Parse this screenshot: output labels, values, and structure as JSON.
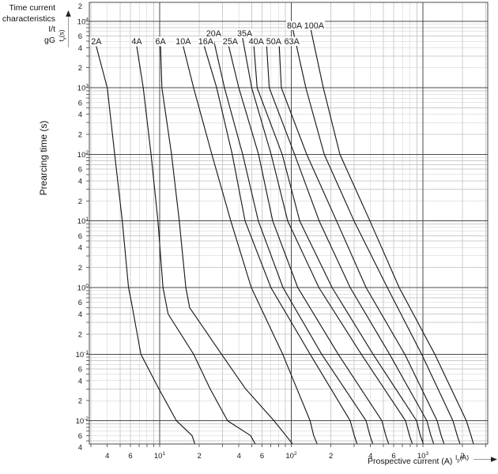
{
  "title": {
    "line1": "Time current",
    "line2": "characteristics I/t",
    "line3": "gG"
  },
  "y_axis": {
    "label": "Prearcing time (s)",
    "symbol_main": "t",
    "symbol_sub": "v",
    "symbol_unit": "(s)"
  },
  "x_axis": {
    "label": "Prospective current (A)",
    "symbol_main": "I",
    "symbol_sub": "p",
    "symbol_unit": "(A)"
  },
  "colors": {
    "background": "#ffffff",
    "grid_minor": "#cccccc",
    "grid_major": "#4a4a4a",
    "frame": "#4a4a4a",
    "curve": "#1a1a1a",
    "text": "#1a1a1a"
  },
  "chart_data": {
    "type": "line",
    "title": "Time current characteristics I/t gG",
    "xlabel": "Prospective current (A)",
    "ylabel": "Prearcing time (s)",
    "x_scale": "log",
    "y_scale": "log",
    "xlim": [
      3,
      3100
    ],
    "ylim": [
      0.004,
      20000
    ],
    "grid": "log minor+major, both axes",
    "x_tick_labels": [
      "4",
      "6",
      "10^1",
      "2",
      "4",
      "6",
      "10^2",
      "2",
      "4",
      "6",
      "10^3",
      "2"
    ],
    "y_tick_labels": [
      "2",
      "10^4",
      "6",
      "4",
      "2",
      "10^3",
      "6",
      "4",
      "2",
      "10^2",
      "6",
      "4",
      "2",
      "10^1",
      "6",
      "4",
      "2",
      "10^0",
      "6",
      "4",
      "2",
      "10^-1",
      "6",
      "4",
      "2",
      "10^-2",
      "6",
      "4"
    ],
    "series_note": "points are [prospective_current_A, prearcing_time_s] read from the curves",
    "series": [
      {
        "name": "2A",
        "label_row": 3,
        "label_dx": 0,
        "points": [
          [
            3.3,
            4200
          ],
          [
            4.0,
            1000
          ],
          [
            4.55,
            100
          ],
          [
            5.2,
            10
          ],
          [
            5.8,
            1
          ],
          [
            6.1,
            0.6
          ],
          [
            7.2,
            0.1
          ],
          [
            9.7,
            0.032
          ],
          [
            13.4,
            0.01
          ],
          [
            17.6,
            0.006
          ],
          [
            18.9,
            0.004
          ]
        ]
      },
      {
        "name": "4A",
        "label_row": 3,
        "label_dx": 0,
        "points": [
          [
            6.7,
            4200
          ],
          [
            7.5,
            1000
          ],
          [
            8.6,
            100
          ],
          [
            9.7,
            10
          ],
          [
            10.6,
            1
          ],
          [
            11.6,
            0.4
          ],
          [
            18.1,
            0.1
          ],
          [
            24.2,
            0.03
          ],
          [
            32.8,
            0.01
          ],
          [
            49,
            0.006
          ],
          [
            55,
            0.004
          ]
        ]
      },
      {
        "name": "6A",
        "label_row": 3,
        "label_dx": 0,
        "points": [
          [
            10.15,
            4200
          ],
          [
            10.4,
            1000
          ],
          [
            12.3,
            100
          ],
          [
            14.1,
            10
          ],
          [
            15.8,
            1
          ],
          [
            16.9,
            0.5
          ],
          [
            29.5,
            0.1
          ],
          [
            45,
            0.03
          ],
          [
            74,
            0.01
          ],
          [
            91,
            0.006
          ],
          [
            107,
            0.004
          ]
        ]
      },
      {
        "name": "10A",
        "label_row": 3,
        "label_dx": 0,
        "points": [
          [
            15.1,
            4200
          ],
          [
            18.1,
            1000
          ],
          [
            24.9,
            100
          ],
          [
            34.7,
            10
          ],
          [
            49.7,
            1
          ],
          [
            86,
            0.1
          ],
          [
            139,
            0.01
          ],
          [
            148,
            0.006
          ],
          [
            161,
            0.004
          ]
        ]
      },
      {
        "name": "16A",
        "label_row": 3,
        "label_dx": 2,
        "points": [
          [
            21.8,
            4200
          ],
          [
            27.1,
            1000
          ],
          [
            35.6,
            100
          ],
          [
            44.5,
            10
          ],
          [
            70,
            1
          ],
          [
            139,
            0.1
          ],
          [
            280,
            0.01
          ],
          [
            301,
            0.006
          ],
          [
            322,
            0.004
          ]
        ]
      },
      {
        "name": "20A",
        "label_row": 2,
        "label_dx": 1,
        "points": [
          [
            25.4,
            5800
          ],
          [
            31.1,
            1000
          ],
          [
            42.7,
            100
          ],
          [
            56.2,
            10
          ],
          [
            86.5,
            1
          ],
          [
            170,
            0.1
          ],
          [
            370,
            0.01
          ],
          [
            396,
            0.006
          ],
          [
            424,
            0.004
          ]
        ]
      },
      {
        "name": "25A",
        "label_row": 3,
        "label_dx": 2,
        "points": [
          [
            33.5,
            4200
          ],
          [
            39.9,
            1000
          ],
          [
            56.4,
            100
          ],
          [
            72.3,
            10
          ],
          [
            112,
            1
          ],
          [
            227,
            0.1
          ],
          [
            488,
            0.01
          ],
          [
            523,
            0.006
          ],
          [
            560,
            0.004
          ]
        ]
      },
      {
        "name": "35A",
        "label_row": 2,
        "label_dx": 3,
        "points": [
          [
            42.5,
            5800
          ],
          [
            50,
            1000
          ],
          [
            70.3,
            100
          ],
          [
            94,
            10
          ],
          [
            162,
            1
          ],
          [
            340,
            0.1
          ],
          [
            738,
            0.01
          ],
          [
            791,
            0.006
          ],
          [
            848,
            0.004
          ]
        ]
      },
      {
        "name": "40A",
        "label_row": 3,
        "label_dx": 3,
        "points": [
          [
            52,
            4200
          ],
          [
            55,
            1000
          ],
          [
            85.3,
            100
          ],
          [
            116,
            10
          ],
          [
            204,
            1
          ],
          [
            418,
            0.1
          ],
          [
            895,
            0.01
          ],
          [
            956,
            0.006
          ],
          [
            1030,
            0.004
          ]
        ]
      },
      {
        "name": "50A",
        "label_row": 3,
        "label_dx": 9,
        "points": [
          [
            65,
            4200
          ],
          [
            68,
            1000
          ],
          [
            106,
            100
          ],
          [
            163,
            10
          ],
          [
            280,
            1
          ],
          [
            558,
            0.1
          ],
          [
            1072,
            0.01
          ],
          [
            1150,
            0.006
          ],
          [
            1233,
            0.004
          ]
        ]
      },
      {
        "name": "63A",
        "label_row": 3,
        "label_dx": 16,
        "points": [
          [
            81,
            4200
          ],
          [
            84,
            1000
          ],
          [
            131,
            100
          ],
          [
            221,
            10
          ],
          [
            370,
            1
          ],
          [
            728,
            0.1
          ],
          [
            1283,
            0.01
          ],
          [
            1376,
            0.006
          ],
          [
            1477,
            0.004
          ]
        ]
      },
      {
        "name": "80A",
        "label_row": 1,
        "label_dx": 2,
        "points": [
          [
            103,
            7400
          ],
          [
            129,
            1000
          ],
          [
            178,
            100
          ],
          [
            300,
            10
          ],
          [
            537,
            1
          ],
          [
            978,
            0.1
          ],
          [
            1691,
            0.01
          ],
          [
            1823,
            0.006
          ],
          [
            1950,
            0.004
          ]
        ]
      },
      {
        "name": "100A",
        "label_row": 1,
        "label_dx": 4,
        "points": [
          [
            141,
            7400
          ],
          [
            175,
            1000
          ],
          [
            234,
            100
          ],
          [
            396,
            10
          ],
          [
            660,
            1
          ],
          [
            1230,
            0.1
          ],
          [
            2140,
            0.01
          ],
          [
            2321,
            0.006
          ],
          [
            2464,
            0.004
          ]
        ]
      }
    ]
  }
}
